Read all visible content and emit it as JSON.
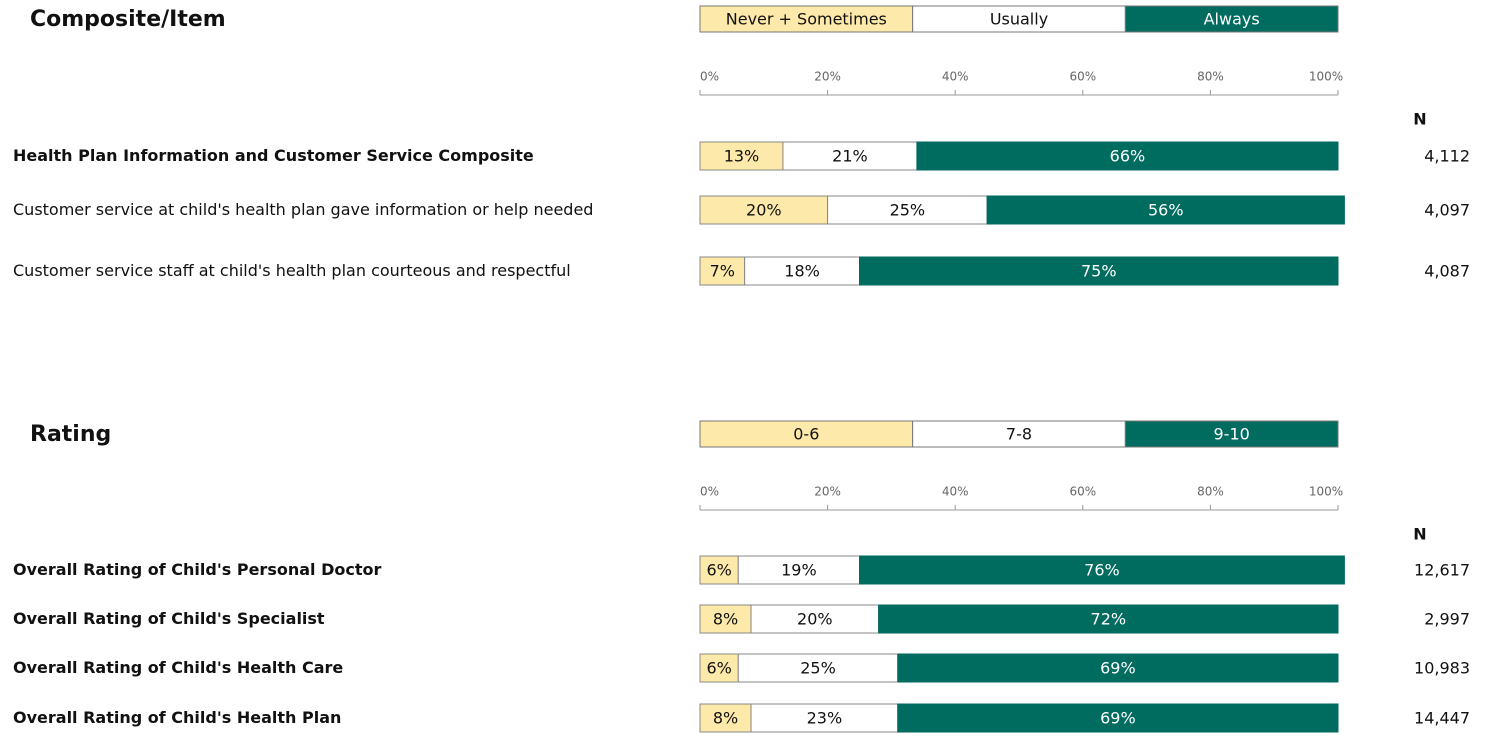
{
  "chart_data": [
    {
      "type": "bar",
      "orientation": "horizontal",
      "stacked": true,
      "title": "Composite/Item",
      "categories": [
        "Health Plan Information and Customer Service Composite",
        "Customer service at child's health plan gave information or help needed",
        "Customer service staff at child's health plan courteous and respectful"
      ],
      "series": [
        {
          "name": "Never + Sometimes",
          "color": "#fde9a9",
          "values": [
            13,
            20,
            7
          ],
          "value_labels": [
            "13%",
            "20%",
            "7%"
          ]
        },
        {
          "name": "Usually",
          "color": "#ffffff",
          "values": [
            21,
            25,
            18
          ],
          "value_labels": [
            "21%",
            "25%",
            "18%"
          ]
        },
        {
          "name": "Always",
          "color": "#006b5f",
          "values": [
            66,
            56,
            75
          ],
          "value_labels": [
            "66%",
            "56%",
            "75%"
          ]
        }
      ],
      "xlim": [
        0,
        100
      ],
      "xticks": [
        {
          "value": 0,
          "label": "0%"
        },
        {
          "value": 20,
          "label": "20%"
        },
        {
          "value": 40,
          "label": "40%"
        },
        {
          "value": 60,
          "label": "60%"
        },
        {
          "value": 80,
          "label": "80%"
        },
        {
          "value": 100,
          "label": "100%"
        }
      ],
      "n_header": "N",
      "n": [
        "4,112",
        "4,097",
        "4,087"
      ]
    },
    {
      "type": "bar",
      "orientation": "horizontal",
      "stacked": true,
      "title": "Rating",
      "categories": [
        "Overall Rating of Child's Personal Doctor",
        "Overall Rating of Child's Specialist",
        "Overall Rating of Child's Health Care",
        "Overall Rating of Child's Health Plan"
      ],
      "series": [
        {
          "name": "0-6",
          "color": "#fde9a9",
          "values": [
            6,
            8,
            6,
            8
          ],
          "value_labels": [
            "6%",
            "8%",
            "6%",
            "8%"
          ]
        },
        {
          "name": "7-8",
          "color": "#ffffff",
          "values": [
            19,
            20,
            25,
            23
          ],
          "value_labels": [
            "19%",
            "20%",
            "25%",
            "23%"
          ]
        },
        {
          "name": "9-10",
          "color": "#006b5f",
          "values": [
            76,
            72,
            69,
            69
          ],
          "value_labels": [
            "76%",
            "72%",
            "69%",
            "69%"
          ]
        }
      ],
      "xlim": [
        0,
        100
      ],
      "xticks": [
        {
          "value": 0,
          "label": "0%"
        },
        {
          "value": 20,
          "label": "20%"
        },
        {
          "value": 40,
          "label": "40%"
        },
        {
          "value": 60,
          "label": "60%"
        },
        {
          "value": 80,
          "label": "80%"
        },
        {
          "value": 100,
          "label": "100%"
        }
      ],
      "n_header": "N",
      "n": [
        "12,617",
        "2,997",
        "10,983",
        "14,447"
      ]
    }
  ]
}
